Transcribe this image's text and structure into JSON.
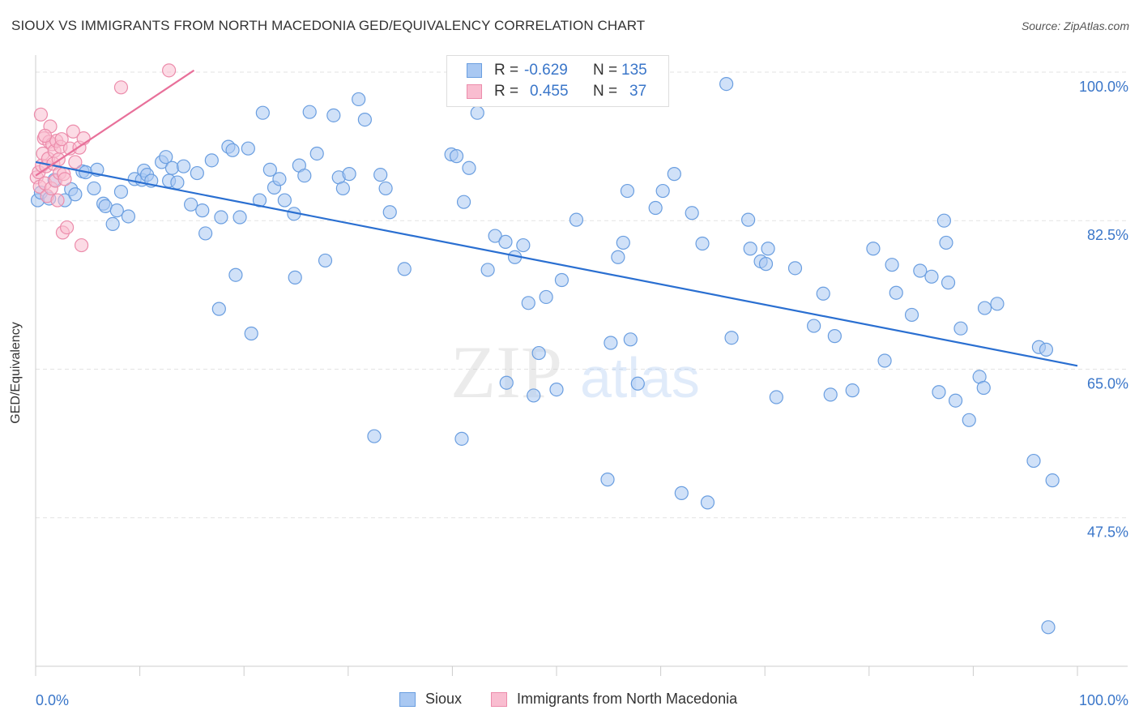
{
  "title": "SIOUX VS IMMIGRANTS FROM NORTH MACEDONIA GED/EQUIVALENCY CORRELATION CHART",
  "source": "Source: ZipAtlas.com",
  "watermark": {
    "zip": "ZIP",
    "atlas": "atlas"
  },
  "legend": {
    "r_label": "R =",
    "n_label": "N =",
    "rows": [
      {
        "name": "Sioux",
        "r": "-0.629",
        "n": "135",
        "color": "#a9c8f2",
        "border": "#6a9ee0"
      },
      {
        "name": "Immigrants from North Macedonia",
        "r": "0.455",
        "n": "37",
        "color": "#f9bdd0",
        "border": "#ec8cab"
      }
    ]
  },
  "bottom_legend": {
    "sioux": "Sioux",
    "macedonia": "Immigrants from North Macedonia"
  },
  "colors": {
    "blue_fill": "#a9c8f2",
    "blue_stroke": "#6a9ee0",
    "blue_line": "#2a6fd1",
    "pink_fill": "#f9bdd0",
    "pink_stroke": "#ec8cab",
    "pink_line": "#e8709a",
    "axis_text": "#3a76c9",
    "grid": "#e3e3e3"
  },
  "chart_data": {
    "type": "scatter",
    "title": "SIOUX VS IMMIGRANTS FROM NORTH MACEDONIA GED/EQUIVALENCY CORRELATION CHART",
    "xlabel": "",
    "ylabel": "GED/Equivalency",
    "xlim": [
      0,
      100
    ],
    "ylim": [
      30,
      102
    ],
    "x_tick_labels": [
      "0.0%",
      "100.0%"
    ],
    "y_ticks": [
      47.5,
      65.0,
      82.5,
      100.0
    ],
    "y_tick_labels": [
      "47.5%",
      "65.0%",
      "82.5%",
      "100.0%"
    ],
    "grid": true,
    "series": [
      {
        "name": "Sioux",
        "trend": {
          "x": [
            0,
            100
          ],
          "y": [
            89.4,
            65.4
          ]
        },
        "points": [
          [
            0.2,
            84.9
          ],
          [
            0.5,
            85.8
          ],
          [
            1.3,
            85.1
          ],
          [
            1.8,
            87.3
          ],
          [
            2.8,
            84.9
          ],
          [
            3.4,
            86.2
          ],
          [
            3.8,
            85.6
          ],
          [
            4.5,
            88.3
          ],
          [
            4.8,
            88.2
          ],
          [
            5.6,
            86.3
          ],
          [
            5.9,
            88.5
          ],
          [
            6.5,
            84.5
          ],
          [
            6.7,
            84.2
          ],
          [
            7.4,
            82.1
          ],
          [
            7.8,
            83.7
          ],
          [
            8.2,
            85.9
          ],
          [
            8.9,
            83.0
          ],
          [
            9.5,
            87.4
          ],
          [
            10.2,
            87.3
          ],
          [
            10.4,
            88.4
          ],
          [
            10.7,
            87.9
          ],
          [
            11.1,
            87.2
          ],
          [
            12.1,
            89.4
          ],
          [
            12.5,
            90.0
          ],
          [
            12.8,
            87.2
          ],
          [
            13.1,
            88.7
          ],
          [
            13.6,
            87.0
          ],
          [
            14.2,
            88.9
          ],
          [
            14.9,
            84.4
          ],
          [
            15.5,
            88.1
          ],
          [
            16.0,
            83.7
          ],
          [
            16.3,
            81.0
          ],
          [
            16.9,
            89.6
          ],
          [
            17.6,
            72.1
          ],
          [
            17.8,
            82.9
          ],
          [
            18.5,
            91.2
          ],
          [
            18.9,
            90.8
          ],
          [
            19.2,
            76.1
          ],
          [
            19.6,
            82.9
          ],
          [
            20.4,
            91.0
          ],
          [
            20.7,
            69.2
          ],
          [
            21.5,
            84.9
          ],
          [
            21.8,
            95.2
          ],
          [
            22.5,
            88.5
          ],
          [
            22.9,
            86.4
          ],
          [
            23.4,
            87.4
          ],
          [
            23.9,
            84.9
          ],
          [
            24.8,
            83.3
          ],
          [
            25.3,
            89.0
          ],
          [
            25.8,
            87.8
          ],
          [
            26.3,
            95.3
          ],
          [
            27.0,
            90.4
          ],
          [
            27.8,
            77.8
          ],
          [
            28.6,
            94.9
          ],
          [
            29.1,
            87.6
          ],
          [
            29.5,
            86.3
          ],
          [
            30.1,
            88.0
          ],
          [
            31.0,
            96.8
          ],
          [
            31.6,
            94.4
          ],
          [
            32.5,
            57.1
          ],
          [
            33.1,
            87.9
          ],
          [
            33.6,
            86.3
          ],
          [
            34.0,
            83.5
          ],
          [
            35.4,
            76.8
          ],
          [
            39.9,
            90.3
          ],
          [
            40.4,
            90.1
          ],
          [
            41.1,
            84.7
          ],
          [
            41.6,
            88.7
          ],
          [
            42.4,
            95.2
          ],
          [
            43.4,
            76.7
          ],
          [
            44.1,
            80.7
          ],
          [
            45.1,
            80.0
          ],
          [
            46.0,
            78.2
          ],
          [
            46.8,
            79.6
          ],
          [
            47.3,
            72.8
          ],
          [
            47.8,
            61.9
          ],
          [
            48.3,
            66.9
          ],
          [
            49.0,
            73.5
          ],
          [
            50.0,
            62.6
          ],
          [
            50.5,
            75.5
          ],
          [
            51.9,
            82.6
          ],
          [
            54.9,
            52.0
          ],
          [
            55.2,
            68.1
          ],
          [
            55.9,
            78.2
          ],
          [
            56.4,
            79.9
          ],
          [
            57.1,
            68.5
          ],
          [
            57.8,
            63.3
          ],
          [
            59.5,
            84.0
          ],
          [
            60.2,
            86.0
          ],
          [
            61.3,
            88.0
          ],
          [
            62.0,
            50.4
          ],
          [
            63.0,
            83.4
          ],
          [
            64.0,
            79.8
          ],
          [
            64.5,
            49.3
          ],
          [
            66.3,
            98.6
          ],
          [
            66.8,
            68.7
          ],
          [
            68.4,
            82.6
          ],
          [
            68.6,
            79.2
          ],
          [
            69.6,
            77.7
          ],
          [
            70.1,
            77.4
          ],
          [
            70.3,
            79.2
          ],
          [
            71.1,
            61.7
          ],
          [
            72.9,
            76.9
          ],
          [
            74.7,
            70.1
          ],
          [
            75.6,
            73.9
          ],
          [
            76.3,
            62.0
          ],
          [
            76.7,
            68.9
          ],
          [
            78.4,
            62.5
          ],
          [
            80.4,
            79.2
          ],
          [
            81.5,
            66.0
          ],
          [
            82.2,
            77.3
          ],
          [
            82.6,
            74.0
          ],
          [
            84.1,
            71.4
          ],
          [
            84.9,
            76.6
          ],
          [
            86.0,
            75.9
          ],
          [
            86.7,
            62.3
          ],
          [
            87.2,
            82.5
          ],
          [
            87.4,
            79.9
          ],
          [
            87.6,
            75.2
          ],
          [
            88.3,
            61.3
          ],
          [
            88.8,
            69.8
          ],
          [
            89.6,
            59.0
          ],
          [
            90.6,
            64.1
          ],
          [
            91.0,
            62.8
          ],
          [
            91.1,
            72.2
          ],
          [
            92.3,
            72.7
          ],
          [
            95.8,
            54.2
          ],
          [
            96.3,
            67.6
          ],
          [
            97.0,
            67.3
          ],
          [
            97.2,
            34.6
          ],
          [
            97.6,
            51.9
          ],
          [
            40.9,
            56.8
          ],
          [
            45.2,
            63.4
          ],
          [
            56.8,
            86.0
          ],
          [
            24.9,
            75.8
          ]
        ]
      },
      {
        "name": "Immigrants from North Macedonia",
        "trend": {
          "x": [
            0,
            15.2
          ],
          "y": [
            87.8,
            100.2
          ]
        },
        "points": [
          [
            0.1,
            87.6
          ],
          [
            0.3,
            88.2
          ],
          [
            0.4,
            86.5
          ],
          [
            0.5,
            95.0
          ],
          [
            0.6,
            89.0
          ],
          [
            0.7,
            90.4
          ],
          [
            0.8,
            92.2
          ],
          [
            0.9,
            86.9
          ],
          [
            1.0,
            88.9
          ],
          [
            1.1,
            85.4
          ],
          [
            1.2,
            89.8
          ],
          [
            1.3,
            91.8
          ],
          [
            1.4,
            93.6
          ],
          [
            1.5,
            86.3
          ],
          [
            1.6,
            91.5
          ],
          [
            1.7,
            89.2
          ],
          [
            1.8,
            90.7
          ],
          [
            1.9,
            87.2
          ],
          [
            2.0,
            91.9
          ],
          [
            2.1,
            84.9
          ],
          [
            2.2,
            89.7
          ],
          [
            2.3,
            88.1
          ],
          [
            2.4,
            91.2
          ],
          [
            2.5,
            92.1
          ],
          [
            2.6,
            81.1
          ],
          [
            2.7,
            88.0
          ],
          [
            2.8,
            87.4
          ],
          [
            3.0,
            81.7
          ],
          [
            3.3,
            91.0
          ],
          [
            3.6,
            93.0
          ],
          [
            3.8,
            89.4
          ],
          [
            4.2,
            91.1
          ],
          [
            4.4,
            79.6
          ],
          [
            4.6,
            92.2
          ],
          [
            8.2,
            98.2
          ],
          [
            12.8,
            100.2
          ],
          [
            0.9,
            92.5
          ]
        ]
      }
    ]
  }
}
